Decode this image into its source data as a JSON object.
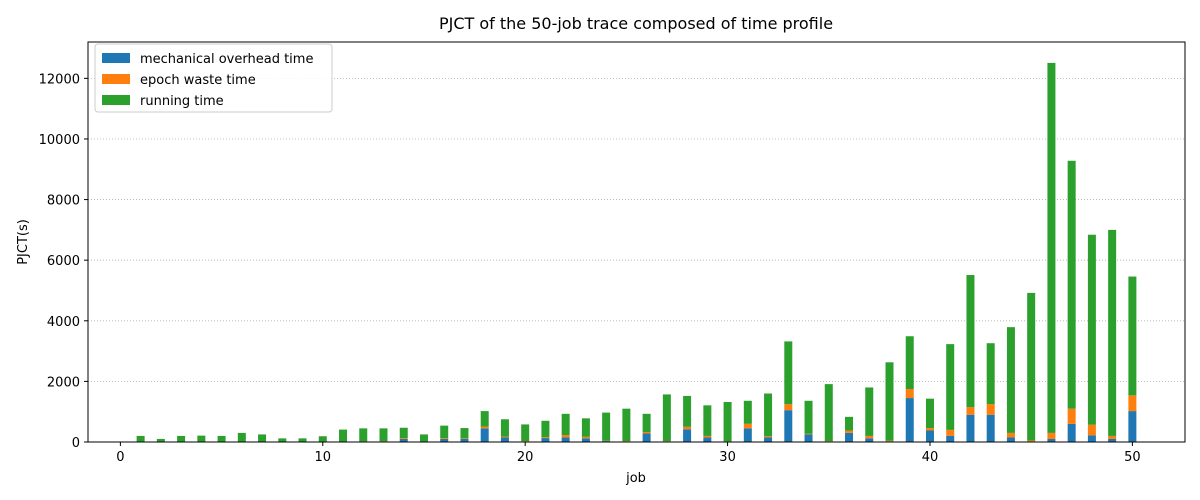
{
  "chart_data": {
    "type": "bar",
    "stacked": true,
    "title": "PJCT of the 50-job trace composed of time profile",
    "xlabel": "job",
    "ylabel": "PJCT(s)",
    "xlim": [
      -1.6,
      52.6
    ],
    "ylim": [
      0,
      13200
    ],
    "xticks": [
      0,
      10,
      20,
      30,
      40,
      50
    ],
    "yticks": [
      0,
      2000,
      4000,
      6000,
      8000,
      10000,
      12000
    ],
    "grid": "y-dotted",
    "legend_position": "top-left",
    "x": [
      1,
      2,
      3,
      4,
      5,
      6,
      7,
      8,
      9,
      10,
      11,
      12,
      13,
      14,
      15,
      16,
      17,
      18,
      19,
      20,
      21,
      22,
      23,
      24,
      25,
      26,
      27,
      28,
      29,
      30,
      31,
      32,
      33,
      34,
      35,
      36,
      37,
      38,
      39,
      40,
      41,
      42,
      43,
      44,
      45,
      46,
      47,
      48,
      49,
      50
    ],
    "series": [
      {
        "name": "mechanical overhead time",
        "color": "#1f77b4",
        "values": [
          5,
          5,
          5,
          5,
          5,
          5,
          5,
          5,
          5,
          5,
          5,
          10,
          15,
          100,
          5,
          100,
          100,
          450,
          150,
          20,
          130,
          150,
          120,
          30,
          20,
          280,
          20,
          420,
          150,
          10,
          450,
          150,
          1050,
          250,
          20,
          300,
          120,
          20,
          1450,
          380,
          200,
          900,
          900,
          150,
          20,
          100,
          600,
          220,
          100,
          1020
        ]
      },
      {
        "name": "epoch waste time",
        "color": "#ff7f0e",
        "values": [
          5,
          5,
          5,
          5,
          5,
          5,
          5,
          5,
          5,
          5,
          5,
          10,
          10,
          30,
          5,
          30,
          20,
          60,
          30,
          10,
          30,
          80,
          50,
          10,
          10,
          50,
          10,
          80,
          50,
          10,
          150,
          40,
          200,
          20,
          10,
          80,
          80,
          20,
          300,
          80,
          200,
          250,
          350,
          150,
          30,
          200,
          500,
          350,
          100,
          520
        ]
      },
      {
        "name": "running time",
        "color": "#2ca02c",
        "values": [
          190,
          90,
          190,
          200,
          190,
          290,
          240,
          110,
          110,
          180,
          400,
          430,
          425,
          340,
          240,
          410,
          340,
          510,
          570,
          550,
          540,
          700,
          610,
          930,
          1070,
          600,
          1540,
          1020,
          1010,
          1300,
          760,
          1410,
          2070,
          1090,
          1880,
          450,
          1600,
          2590,
          1740,
          970,
          2830,
          4360,
          2010,
          3490,
          4870,
          12210,
          8180,
          6270,
          6800,
          3920
        ]
      }
    ]
  }
}
